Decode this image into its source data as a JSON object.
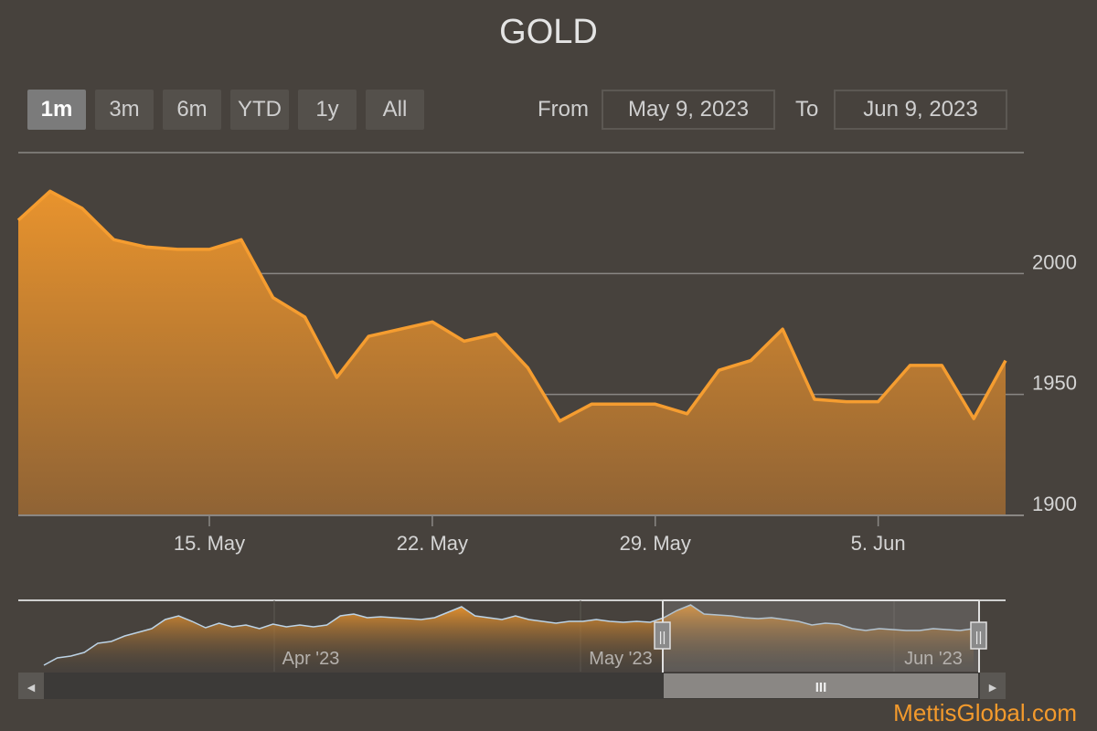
{
  "title": "GOLD",
  "range_buttons": [
    {
      "label": "1m",
      "active": true
    },
    {
      "label": "3m",
      "active": false
    },
    {
      "label": "6m",
      "active": false
    },
    {
      "label": "YTD",
      "active": false
    },
    {
      "label": "1y",
      "active": false
    },
    {
      "label": "All",
      "active": false
    }
  ],
  "date_range": {
    "from_label": "From",
    "from_value": "May 9, 2023",
    "to_label": "To",
    "to_value": "Jun 9, 2023"
  },
  "watermark": "MettisGlobal.com",
  "colors": {
    "background": "#47423d",
    "line": "#f59d30",
    "fill_top": "#e8932d",
    "fill_bottom": "#8f6335",
    "grid": "#8a8784"
  },
  "chart_data": {
    "type": "area",
    "title": "GOLD",
    "xlabel": "",
    "ylabel": "",
    "ylim": [
      1900,
      2050
    ],
    "y_ticks": [
      1900,
      1950,
      2000
    ],
    "x_ticks": [
      "15. May",
      "22. May",
      "29. May",
      "5. Jun"
    ],
    "x_tick_dates": [
      "2023-05-15",
      "2023-05-22",
      "2023-05-29",
      "2023-06-05"
    ],
    "grid": true,
    "x": [
      "2023-05-09",
      "2023-05-10",
      "2023-05-11",
      "2023-05-12",
      "2023-05-13",
      "2023-05-14",
      "2023-05-15",
      "2023-05-16",
      "2023-05-17",
      "2023-05-18",
      "2023-05-19",
      "2023-05-20",
      "2023-05-21",
      "2023-05-22",
      "2023-05-23",
      "2023-05-24",
      "2023-05-25",
      "2023-05-26",
      "2023-05-27",
      "2023-05-28",
      "2023-05-29",
      "2023-05-30",
      "2023-05-31",
      "2023-06-01",
      "2023-06-02",
      "2023-06-03",
      "2023-06-04",
      "2023-06-05",
      "2023-06-06",
      "2023-06-07",
      "2023-06-08",
      "2023-06-09"
    ],
    "values": [
      2022,
      2034,
      2027,
      2014,
      2011,
      2010,
      2010,
      2014,
      1990,
      1982,
      1957,
      1974,
      1977,
      1980,
      1972,
      1975,
      1961,
      1939,
      1946,
      1946,
      1946,
      1942,
      1960,
      1964,
      1977,
      1948,
      1947,
      1947,
      1962,
      1962,
      1940,
      1964
    ]
  },
  "navigator": {
    "labels": [
      "Apr '23",
      "May '23",
      "Jun '23"
    ],
    "grip": "III",
    "left_arrow": "◀",
    "right_arrow": "▶",
    "handle_glyph": "||",
    "selected_range": [
      "2023-05-09",
      "2023-06-09"
    ]
  }
}
